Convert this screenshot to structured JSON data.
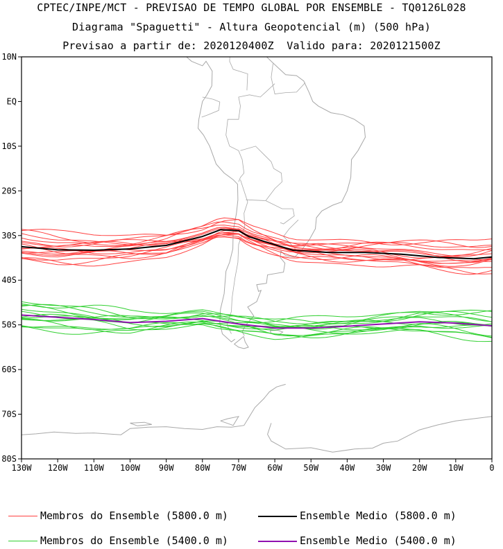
{
  "titles": [
    "CPTEC/INPE/MCT - PREVISAO DE TEMPO GLOBAL POR ENSEMBLE - TQ0126L028",
    "Diagrama \"Spaguetti\" - Altura Geopotencial (m) (500 hPa)",
    "Previsao a partir de: 2020120400Z  Valido para: 2020121500Z"
  ],
  "axes": {
    "lon_labels": [
      "130W",
      "120W",
      "110W",
      "100W",
      "90W",
      "80W",
      "70W",
      "60W",
      "50W",
      "40W",
      "30W",
      "20W",
      "10W",
      "0"
    ],
    "lon_values": [
      -130,
      -120,
      -110,
      -100,
      -90,
      -80,
      -70,
      -60,
      -50,
      -40,
      -30,
      -20,
      -10,
      0
    ],
    "lat_labels": [
      "10N",
      "EQ",
      "10S",
      "20S",
      "30S",
      "40S",
      "50S",
      "60S",
      "70S",
      "80S"
    ],
    "lat_values": [
      10,
      0,
      -10,
      -20,
      -30,
      -40,
      -50,
      -60,
      -70,
      -80
    ],
    "lon_range": [
      -130,
      0
    ],
    "lat_range": [
      -80,
      10
    ]
  },
  "legend": [
    {
      "label": "Membros do Ensemble (5800.0 m)",
      "color": "#ff4040"
    },
    {
      "label": "Ensemble Medio (5800.0 m)",
      "color": "#000000"
    },
    {
      "label": "Membros do Ensemble (5400.0 m)",
      "color": "#30d030"
    },
    {
      "label": "Ensemble Medio (5400.0 m)",
      "color": "#9010b0"
    }
  ],
  "colors": {
    "member_5800": "#ff4040",
    "mean_5800": "#000000",
    "member_5400": "#30d030",
    "mean_5400": "#9010b0",
    "coast": "#a8a8a8"
  },
  "contours": {
    "mean_5800": {
      "lon": [
        -130,
        -120,
        -110,
        -100,
        -90,
        -80,
        -75,
        -70,
        -67,
        -63,
        -55,
        -45,
        -35,
        -25,
        -15,
        -5,
        0
      ],
      "lat": [
        -32.5,
        -33.2,
        -33.3,
        -33.0,
        -32.2,
        -30.2,
        -28.7,
        -28.9,
        -30.3,
        -31.3,
        -33.3,
        -33.8,
        -33.8,
        -34.2,
        -34.9,
        -35.2,
        -34.8
      ]
    },
    "mean_5400": {
      "lon": [
        -130,
        -120,
        -110,
        -100,
        -90,
        -80,
        -70,
        -60,
        -50,
        -40,
        -30,
        -20,
        -10,
        0
      ],
      "lat": [
        -47.8,
        -48.3,
        -48.8,
        -49.5,
        -49.2,
        -48.6,
        -49.8,
        -50.7,
        -50.7,
        -50.3,
        -49.8,
        -49.3,
        -49.6,
        -50.2
      ]
    },
    "members_5800_offsets": [
      1.2,
      -1.0,
      2.0,
      -1.6,
      0.5,
      -0.6,
      2.6,
      -2.2,
      0.9,
      -1.4,
      1.7,
      -0.3,
      3.2,
      -2.8,
      0.2,
      -0.9
    ],
    "members_5400_offsets": [
      1.5,
      -1.3,
      0.7,
      -0.6,
      2.1,
      -1.9,
      0.3,
      -0.2,
      1.1,
      -2.4,
      2.4,
      -0.9,
      0.9,
      -1.6
    ]
  }
}
